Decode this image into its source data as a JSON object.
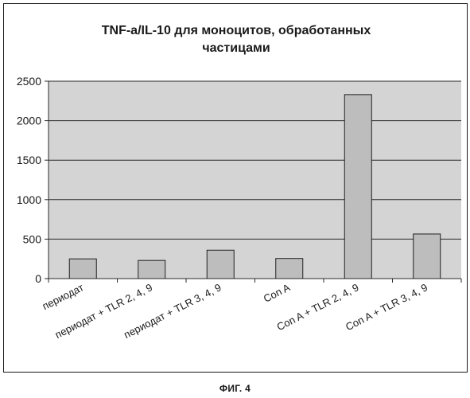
{
  "colors": {
    "plot_background": "#d4d4d4",
    "bar_fill": "#bdbdbd",
    "bar_stroke": "#202020",
    "gridline": "#2a2a2a",
    "text": "#1a1a1a"
  },
  "figure_caption": "ФИГ. 4",
  "chart_data": {
    "type": "bar",
    "title_lines": [
      "TNF-a/IL-10 для моноцитов, обработанных",
      "частицами"
    ],
    "categories": [
      "периодат",
      "периодат + TLR 2, 4, 9",
      "периодат + TLR 3, 4, 9",
      "Con A",
      "Con A + TLR 2, 4, 9",
      "Con A + TLR 3, 4, 9"
    ],
    "values": [
      250,
      230,
      360,
      255,
      2330,
      565
    ],
    "xlabel": "",
    "ylabel": "",
    "ylim": [
      0,
      2500
    ],
    "yticks": [
      0,
      500,
      1000,
      1500,
      2000,
      2500
    ],
    "grid": true,
    "legend": false
  }
}
